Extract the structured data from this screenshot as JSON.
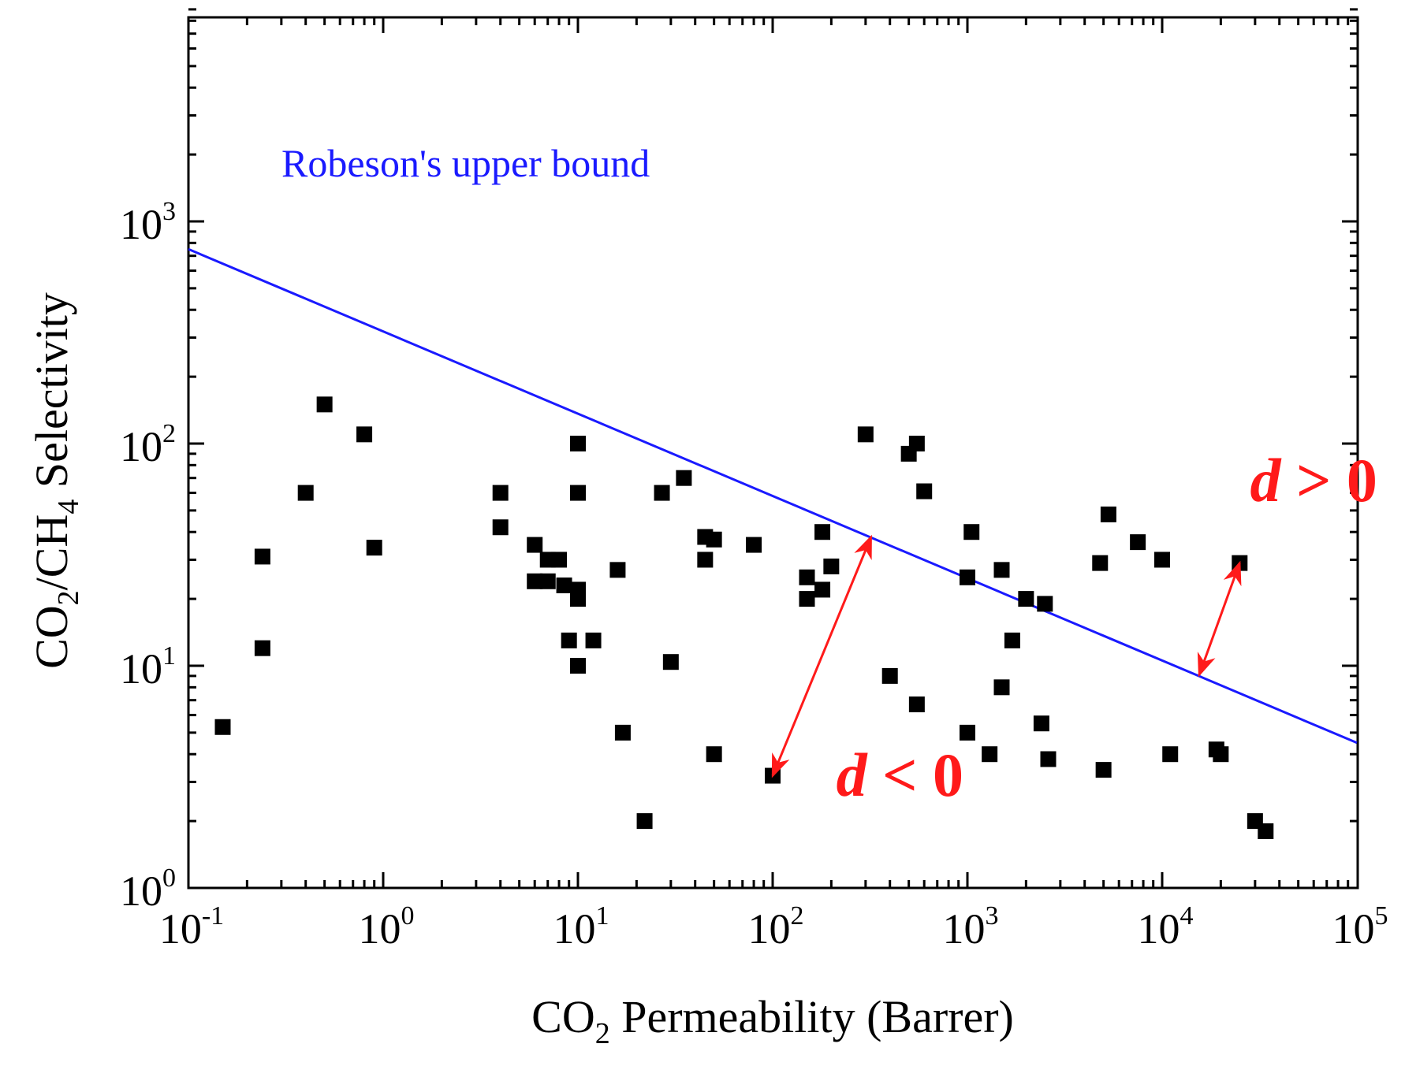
{
  "chart_data": {
    "type": "scatter",
    "title": "",
    "xscale": "log",
    "yscale": "log",
    "xlim": [
      0.1,
      100000
    ],
    "ylim": [
      1,
      10000
    ],
    "xlabel": {
      "main": "CO",
      "sub": "2",
      "rest": " Permeability (Barrer)"
    },
    "ylabel": {
      "p1": "CO",
      "s1": "2",
      "p2": "/CH",
      "s2": "4",
      "p3": " Selectivity"
    },
    "x_ticks": [
      {
        "value": 0.1,
        "base": "10",
        "exp": "-1"
      },
      {
        "value": 1,
        "base": "10",
        "exp": "0"
      },
      {
        "value": 10,
        "base": "10",
        "exp": "1"
      },
      {
        "value": 100,
        "base": "10",
        "exp": "2"
      },
      {
        "value": 1000,
        "base": "10",
        "exp": "3"
      },
      {
        "value": 10000,
        "base": "10",
        "exp": "4"
      },
      {
        "value": 100000,
        "base": "10",
        "exp": "5"
      }
    ],
    "y_ticks": [
      {
        "value": 1,
        "base": "10",
        "exp": "0"
      },
      {
        "value": 10,
        "base": "10",
        "exp": "1"
      },
      {
        "value": 100,
        "base": "10",
        "exp": "2"
      },
      {
        "value": 1000,
        "base": "10",
        "exp": "3"
      }
    ],
    "upper_bound": {
      "name": "Robeson's upper bound",
      "color": "#1a1aff",
      "points": [
        [
          0.1,
          750
        ],
        [
          100000,
          4.5
        ]
      ]
    },
    "series": [
      {
        "name": "membranes",
        "marker": "square",
        "color": "#000000",
        "points": [
          [
            0.15,
            5.3
          ],
          [
            0.24,
            31
          ],
          [
            0.24,
            12
          ],
          [
            0.4,
            60
          ],
          [
            0.5,
            150
          ],
          [
            0.8,
            110
          ],
          [
            0.9,
            34
          ],
          [
            4,
            60
          ],
          [
            4,
            42
          ],
          [
            6,
            35
          ],
          [
            6,
            24
          ],
          [
            7,
            24
          ],
          [
            7,
            30
          ],
          [
            8,
            30
          ],
          [
            8.5,
            23
          ],
          [
            9,
            13
          ],
          [
            10,
            100
          ],
          [
            10,
            60
          ],
          [
            10,
            22
          ],
          [
            10,
            20
          ],
          [
            10,
            10
          ],
          [
            12,
            13
          ],
          [
            16,
            27
          ],
          [
            17,
            5
          ],
          [
            22,
            2
          ],
          [
            27,
            60
          ],
          [
            30,
            10.4
          ],
          [
            35,
            70
          ],
          [
            45,
            30
          ],
          [
            45,
            38
          ],
          [
            50,
            37
          ],
          [
            50,
            4
          ],
          [
            80,
            35
          ],
          [
            100,
            3.2
          ],
          [
            150,
            25
          ],
          [
            150,
            20
          ],
          [
            180,
            40
          ],
          [
            180,
            22
          ],
          [
            200,
            28
          ],
          [
            300,
            110
          ],
          [
            400,
            9
          ],
          [
            500,
            90
          ],
          [
            550,
            100
          ],
          [
            550,
            6.7
          ],
          [
            600,
            61
          ],
          [
            1000,
            5
          ],
          [
            1000,
            25
          ],
          [
            1050,
            40
          ],
          [
            1300,
            4
          ],
          [
            1500,
            27
          ],
          [
            1500,
            8
          ],
          [
            1700,
            13
          ],
          [
            2000,
            20
          ],
          [
            2400,
            5.5
          ],
          [
            2500,
            19
          ],
          [
            2600,
            3.8
          ],
          [
            4800,
            29
          ],
          [
            5000,
            3.4
          ],
          [
            5300,
            48
          ],
          [
            7500,
            36
          ],
          [
            10000,
            30
          ],
          [
            11000,
            4
          ],
          [
            19000,
            4.2
          ],
          [
            20000,
            4
          ],
          [
            25000,
            29
          ],
          [
            30000,
            2
          ],
          [
            34000,
            1.8
          ]
        ]
      }
    ],
    "annotations": [
      {
        "text_var": "d",
        "text_rest": " < 0",
        "color": "#ff1a1a",
        "arrow_from": [
          100,
          3.2
        ],
        "arrow_to": [
          320,
          38
        ],
        "label_at": [
          450,
          2.6
        ]
      },
      {
        "text_var": "d",
        "text_rest": " > 0",
        "color": "#ff1a1a",
        "arrow_from": [
          15500,
          9.1
        ],
        "arrow_to": [
          25000,
          29
        ],
        "label_at": [
          60000,
          55
        ]
      }
    ]
  }
}
